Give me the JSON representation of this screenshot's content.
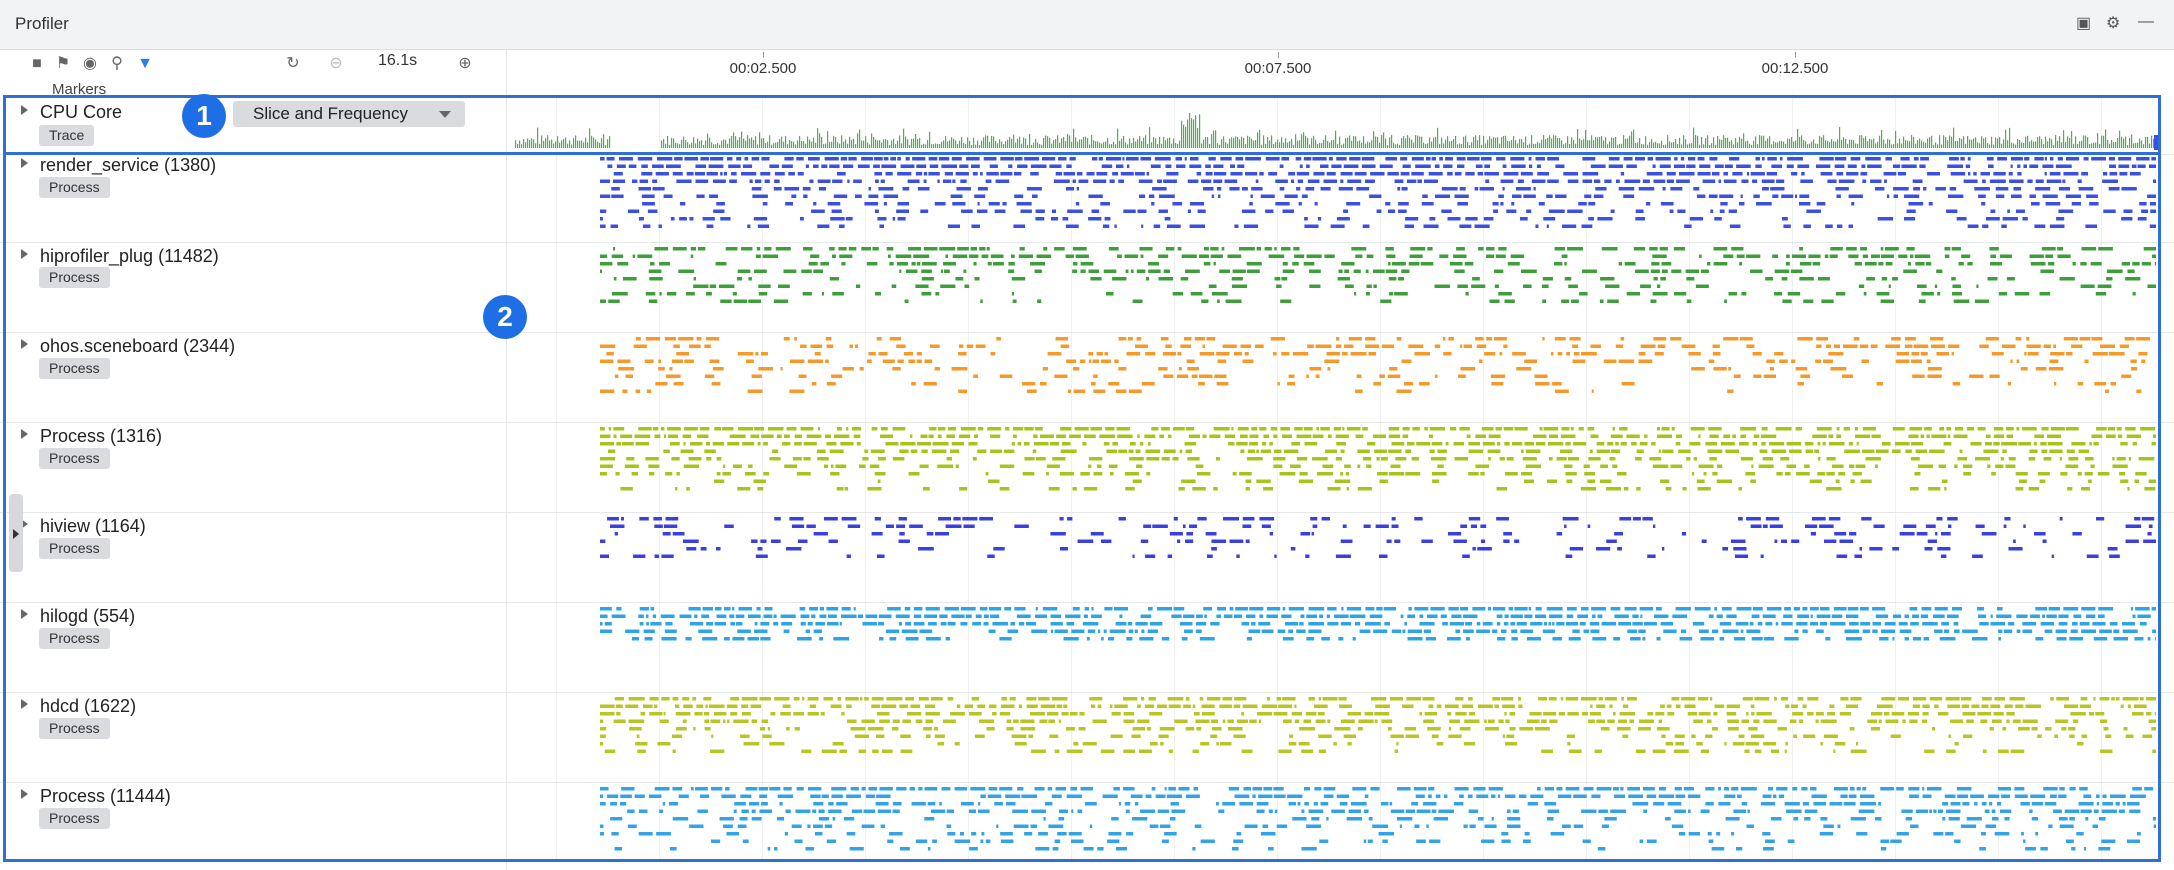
{
  "window": {
    "title": "Profiler"
  },
  "toolbar": {
    "zoom_label": "16.1s",
    "markers_label": "Markers",
    "icons": [
      "stop-icon",
      "flag-icon",
      "globe-icon",
      "search-icon",
      "filter-icon",
      "reset-zoom-icon",
      "zoom-out-icon",
      "zoom-in-icon"
    ]
  },
  "window_controls": [
    "restore-icon",
    "gear-icon",
    "minimize-icon"
  ],
  "timeline": {
    "ticks": [
      "00:02.500",
      "00:07.500",
      "00:12.500"
    ]
  },
  "cpu": {
    "name": "CPU Core",
    "badge": "Trace",
    "mode_select": "Slice and Frequency",
    "color": "#4caf50"
  },
  "callouts": [
    "1",
    "2"
  ],
  "processes": [
    {
      "name": "render_service (1380)",
      "badge": "Process",
      "color": "#3b4fe0"
    },
    {
      "name": "hiprofiler_plug (11482)",
      "badge": "Process",
      "color": "#3e9e3a"
    },
    {
      "name": "ohos.sceneboard (2344)",
      "badge": "Process",
      "color": "#f39a2a"
    },
    {
      "name": "Process (1316)",
      "badge": "Process",
      "color": "#a8c41c"
    },
    {
      "name": "hiview (1164)",
      "badge": "Process",
      "color": "#3a3fe0"
    },
    {
      "name": "hilogd (554)",
      "badge": "Process",
      "color": "#2ea4e6"
    },
    {
      "name": "hdcd (1622)",
      "badge": "Process",
      "color": "#b8c624"
    },
    {
      "name": "Process (11444)",
      "badge": "Process",
      "color": "#34a3e6"
    }
  ]
}
